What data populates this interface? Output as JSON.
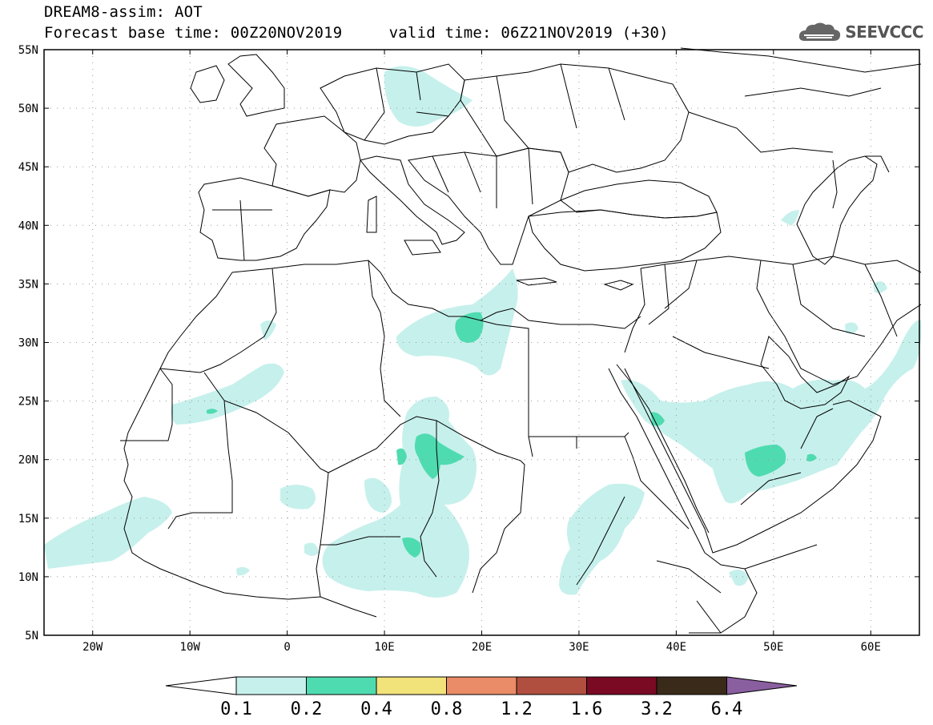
{
  "header": {
    "title": "DREAM8-assim: AOT",
    "base_time_label": "Forecast base time: 00Z20NOV2019",
    "valid_time_label": "valid time: 06Z21NOV2019 (+30)"
  },
  "logo": {
    "text": "SEEVCCC",
    "icon": "cloud-logo-icon"
  },
  "map": {
    "lat_ticks": [
      "55N",
      "50N",
      "45N",
      "40N",
      "35N",
      "30N",
      "25N",
      "20N",
      "15N",
      "10N",
      "5N"
    ],
    "lon_ticks": [
      "20W",
      "10W",
      "0",
      "10E",
      "20E",
      "30E",
      "40E",
      "50E",
      "60E"
    ],
    "lon_range": [
      -25,
      65
    ],
    "lat_range": [
      5,
      55
    ]
  },
  "colorbar": {
    "labels": [
      "0.1",
      "0.2",
      "0.4",
      "0.8",
      "1.2",
      "1.6",
      "3.2",
      "6.4"
    ],
    "colors": [
      "#ffffff",
      "#c6f0ec",
      "#4fdbb0",
      "#f2e27a",
      "#ea8c67",
      "#b04f3f",
      "#7a0a24",
      "#3a2a1a",
      "#8a5fa0"
    ]
  }
}
